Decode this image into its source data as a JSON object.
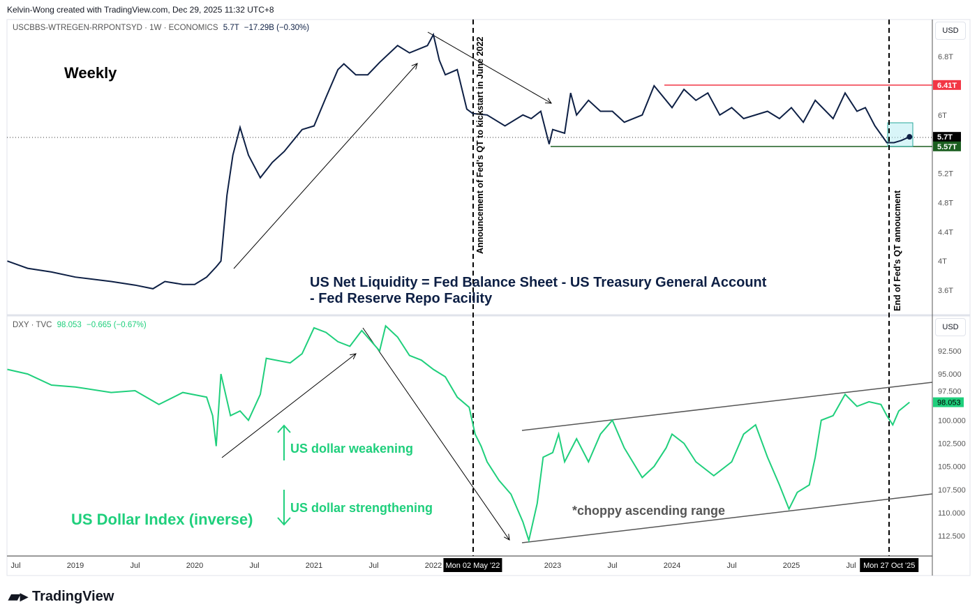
{
  "credit": "Kelvin-Wong created with TradingView.com, Dec 29, 2025 11:32 UTC+8",
  "top_legend": {
    "symbol": "USCBBS-WTREGEN-RRPONTSYD · 1W · ECONOMICS",
    "last": "5.7T",
    "change": "−17.29B (−0.30%)"
  },
  "bottom_legend": {
    "symbol": "DXY · TVC",
    "last": "98.053",
    "change": "−0.665 (−0.67%)"
  },
  "currency": "USD",
  "brand": "TradingView",
  "colors": {
    "net_liquidity": "#0d1f44",
    "dxy": "#1fcf7c",
    "resistance": "#f23645",
    "support": "#1b5e20"
  },
  "annotations": {
    "weekly": "Weekly",
    "formula_line1": "US Net Liquidity = Fed Balance Sheet - US Treasury General Account",
    "formula_line2": "- Fed Reserve Repo Facility",
    "qt_start": "Announcement of Fed's QT to kickstart in June 2022",
    "qt_end": "End of Fed's QT annoucment",
    "weakening": "US dollar weakening",
    "strengthening": "US dollar strengthening",
    "dxy_title": "US Dollar Index (inverse)",
    "range": "*choppy ascending range"
  },
  "chart_data": [
    {
      "type": "line",
      "name": "US Net Liquidity",
      "unit": "T USD",
      "ylim": [
        3.4,
        7.3
      ],
      "y_ticks": [
        "6.8T",
        "6T",
        "5.2T",
        "4.8T",
        "4.4T",
        "4T",
        "3.6T"
      ],
      "y_tick_values": [
        6.8,
        6,
        5.2,
        4.8,
        4.4,
        4,
        3.6
      ],
      "price_labels": [
        {
          "text": "6.41T",
          "value": 6.41,
          "color": "#f23645"
        },
        {
          "text": "5.7T",
          "value": 5.7,
          "color": "#000000"
        },
        {
          "text": "5.57T",
          "value": 5.57,
          "color": "#1b5e20"
        }
      ],
      "x": [
        2018.43,
        2018.6,
        2018.8,
        2019.0,
        2019.3,
        2019.5,
        2019.65,
        2019.75,
        2019.9,
        2020.0,
        2020.1,
        2020.18,
        2020.22,
        2020.27,
        2020.32,
        2020.38,
        2020.45,
        2020.55,
        2020.65,
        2020.75,
        2020.9,
        2021.0,
        2021.1,
        2021.2,
        2021.25,
        2021.35,
        2021.45,
        2021.55,
        2021.7,
        2021.8,
        2021.95,
        2022.0,
        2022.05,
        2022.1,
        2022.2,
        2022.28,
        2022.33,
        2022.45,
        2022.6,
        2022.75,
        2022.82,
        2022.9,
        2022.97,
        2023.0,
        2023.1,
        2023.15,
        2023.2,
        2023.3,
        2023.4,
        2023.5,
        2023.6,
        2023.75,
        2023.85,
        2024.0,
        2024.1,
        2024.2,
        2024.3,
        2024.4,
        2024.5,
        2024.6,
        2024.8,
        2024.9,
        2025.0,
        2025.1,
        2025.2,
        2025.35,
        2025.45,
        2025.55,
        2025.62,
        2025.7,
        2025.8,
        2025.86,
        2025.92,
        2025.99
      ],
      "values": [
        4.0,
        3.9,
        3.85,
        3.78,
        3.72,
        3.67,
        3.62,
        3.72,
        3.68,
        3.68,
        3.78,
        3.92,
        4.0,
        4.9,
        5.45,
        5.83,
        5.45,
        5.14,
        5.35,
        5.5,
        5.8,
        5.85,
        6.24,
        6.62,
        6.7,
        6.55,
        6.55,
        6.72,
        6.95,
        6.85,
        6.95,
        7.1,
        6.75,
        6.55,
        6.62,
        6.08,
        6.02,
        6.0,
        5.85,
        6.0,
        5.95,
        6.05,
        5.6,
        5.8,
        5.75,
        6.3,
        6.0,
        6.2,
        6.05,
        6.05,
        5.9,
        6.0,
        6.4,
        6.1,
        6.35,
        6.2,
        6.3,
        6.0,
        6.1,
        5.95,
        6.05,
        5.95,
        6.1,
        5.9,
        6.2,
        5.95,
        6.3,
        6.05,
        6.1,
        5.85,
        5.62,
        5.62,
        5.65,
        5.7
      ]
    },
    {
      "type": "line",
      "name": "DXY (inverted)",
      "ylim": [
        90,
        115
      ],
      "inverted": true,
      "y_ticks": [
        "92.500",
        "95.000",
        "97.500",
        "100.000",
        "102.500",
        "105.000",
        "107.500",
        "110.000",
        "112.500"
      ],
      "y_tick_values": [
        92.5,
        95,
        97.5,
        100,
        102.5,
        105,
        107.5,
        110,
        112.5
      ],
      "price_labels": [
        {
          "text": "98.053",
          "value": 98.053,
          "color": "#1fcf7c"
        }
      ],
      "x": [
        2018.43,
        2018.6,
        2018.8,
        2019.0,
        2019.3,
        2019.5,
        2019.7,
        2019.9,
        2020.1,
        2020.15,
        2020.18,
        2020.22,
        2020.3,
        2020.38,
        2020.45,
        2020.55,
        2020.6,
        2020.8,
        2020.9,
        2021.0,
        2021.1,
        2021.2,
        2021.3,
        2021.4,
        2021.55,
        2021.6,
        2021.7,
        2021.8,
        2021.9,
        2022.0,
        2022.1,
        2022.2,
        2022.3,
        2022.35,
        2022.4,
        2022.45,
        2022.55,
        2022.65,
        2022.75,
        2022.8,
        2022.87,
        2022.92,
        2023.0,
        2023.05,
        2023.1,
        2023.2,
        2023.3,
        2023.4,
        2023.5,
        2023.6,
        2023.75,
        2023.85,
        2023.95,
        2024.0,
        2024.1,
        2024.2,
        2024.35,
        2024.5,
        2024.6,
        2024.7,
        2024.8,
        2024.9,
        2024.98,
        2025.05,
        2025.15,
        2025.2,
        2025.25,
        2025.35,
        2025.45,
        2025.55,
        2025.65,
        2025.75,
        2025.8,
        2025.85,
        2025.9,
        2025.99
      ],
      "values": [
        94.5,
        95.0,
        96.2,
        96.4,
        97.0,
        96.8,
        98.3,
        97.0,
        97.5,
        99.5,
        102.8,
        95.0,
        99.5,
        99.0,
        100.0,
        97.2,
        93.3,
        93.8,
        92.8,
        90.0,
        90.5,
        91.5,
        92.0,
        90.3,
        92.5,
        89.8,
        91.0,
        93.0,
        93.5,
        94.5,
        95.3,
        97.5,
        98.6,
        101.5,
        102.8,
        104.5,
        106.5,
        108.0,
        111.0,
        113.0,
        109.0,
        104.0,
        103.5,
        101.5,
        104.5,
        102.0,
        104.5,
        101.5,
        100.0,
        103.0,
        106.2,
        105.0,
        103.0,
        101.5,
        102.5,
        104.5,
        106.0,
        104.5,
        101.5,
        100.5,
        104.0,
        107.0,
        109.6,
        107.8,
        107.0,
        104.0,
        100.0,
        99.5,
        97.2,
        98.5,
        98.0,
        98.3,
        99.5,
        100.5,
        99.0,
        98.053
      ]
    }
  ],
  "x_axis": {
    "ticks": [
      {
        "label": "Jul",
        "x": 2018.5
      },
      {
        "label": "2019",
        "x": 2019
      },
      {
        "label": "Jul",
        "x": 2019.5
      },
      {
        "label": "2020",
        "x": 2020
      },
      {
        "label": "Jul",
        "x": 2020.5
      },
      {
        "label": "2021",
        "x": 2021
      },
      {
        "label": "Jul",
        "x": 2021.5
      },
      {
        "label": "2022",
        "x": 2022
      },
      {
        "label": "2023",
        "x": 2023
      },
      {
        "label": "Jul",
        "x": 2023.5
      },
      {
        "label": "2024",
        "x": 2024
      },
      {
        "label": "Jul",
        "x": 2024.5
      },
      {
        "label": "2025",
        "x": 2025
      },
      {
        "label": "Jul",
        "x": 2025.5
      }
    ],
    "markers": [
      {
        "label": "Mon 02 May '22",
        "x": 2022.33
      },
      {
        "label": "Mon 27 Oct '25",
        "x": 2025.82
      }
    ]
  }
}
